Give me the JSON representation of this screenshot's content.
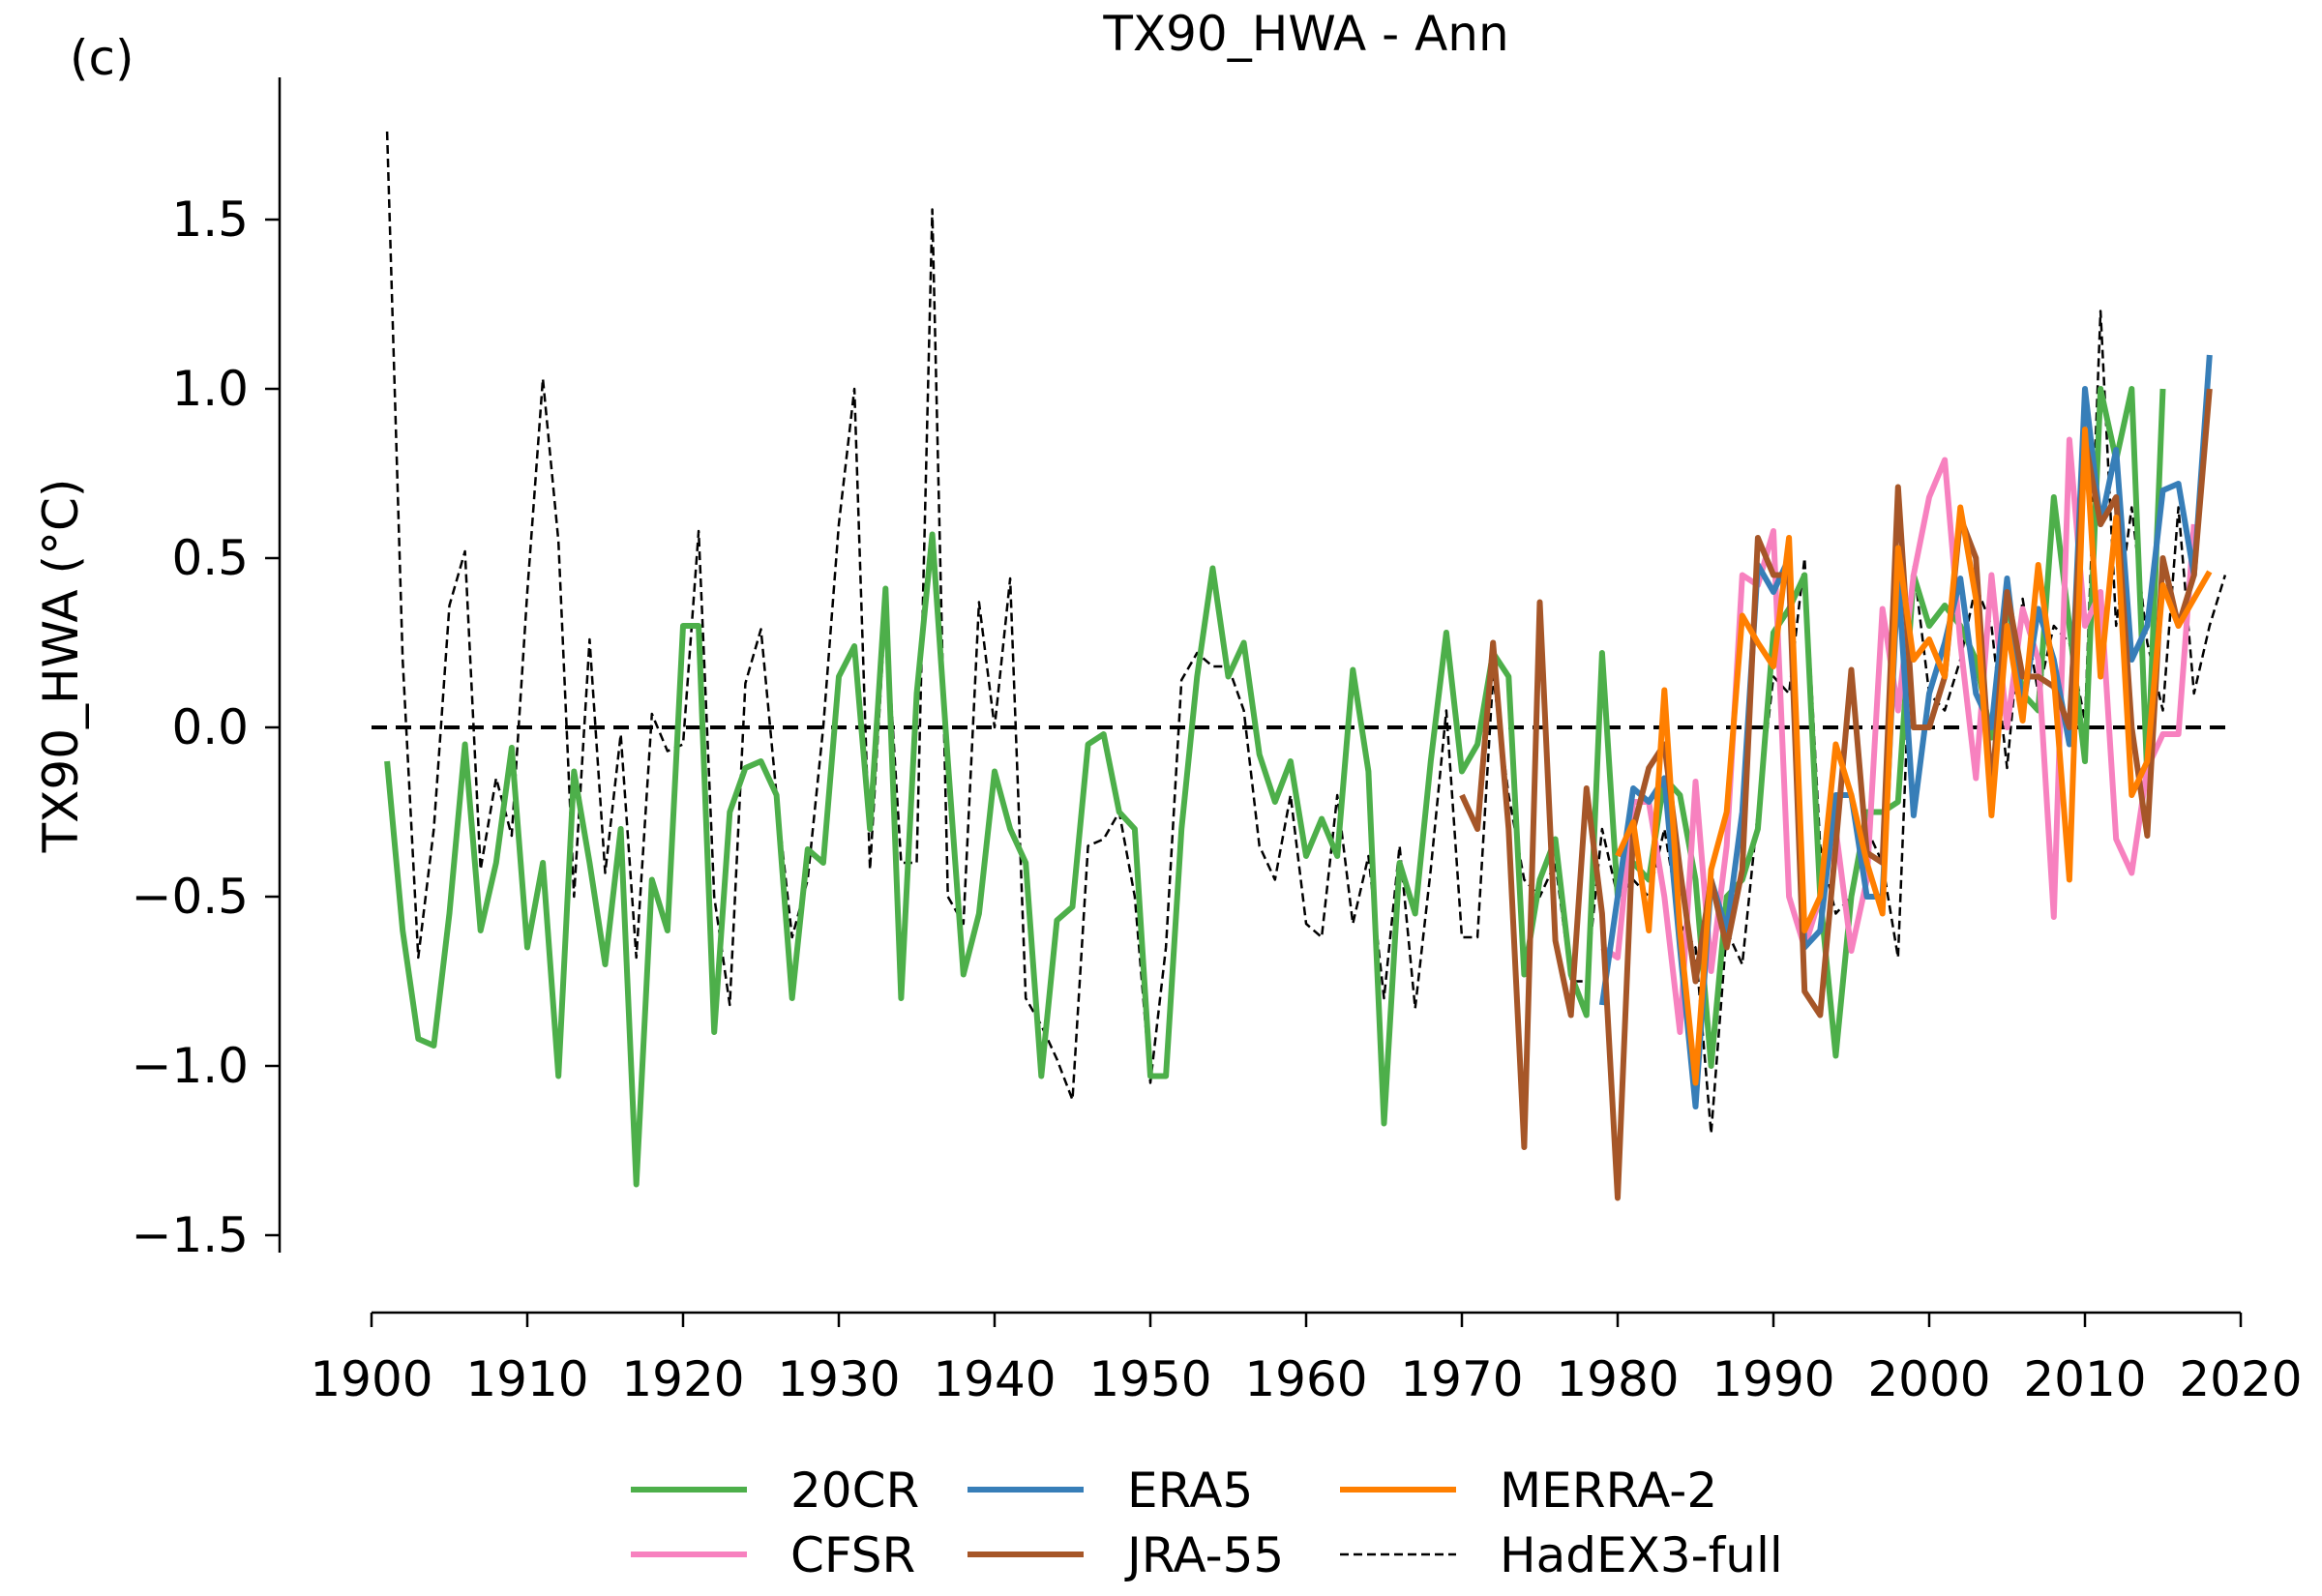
{
  "panel_label": "(c)",
  "chart_data": {
    "type": "line",
    "title": "TX90_HWA - Ann",
    "xlabel": "",
    "ylabel": "TX90_HWA (°C)",
    "xlim": [
      1900,
      2020
    ],
    "ylim": [
      -1.5,
      1.8
    ],
    "x_ticks": [
      1900,
      1910,
      1920,
      1930,
      1940,
      1950,
      1960,
      1970,
      1980,
      1990,
      2000,
      2010,
      2020
    ],
    "y_ticks": [
      1.5,
      1.0,
      0.5,
      0.0,
      -0.5,
      -1.0,
      -1.5
    ],
    "y_tick_labels": [
      "1.5",
      "1.0",
      "0.5",
      "0.0",
      "−0.5",
      "−1.0",
      "−1.5"
    ],
    "zero_line": true,
    "grid": false,
    "legend_position": "bottom",
    "series": [
      {
        "name": "20CR",
        "color": "#4daf4a",
        "style": "solid",
        "x_start": 1901,
        "values": [
          -0.1,
          -0.6,
          -0.92,
          -0.94,
          -0.55,
          -0.05,
          -0.6,
          -0.4,
          -0.06,
          -0.65,
          -0.4,
          -1.03,
          -0.13,
          -0.4,
          -0.7,
          -0.3,
          -1.35,
          -0.45,
          -0.6,
          0.3,
          0.3,
          -0.9,
          -0.25,
          -0.12,
          -0.1,
          -0.2,
          -0.8,
          -0.36,
          -0.4,
          0.15,
          0.24,
          -0.3,
          0.41,
          -0.8,
          0.1,
          0.57,
          -0.1,
          -0.73,
          -0.55,
          -0.13,
          -0.3,
          -0.4,
          -1.03,
          -0.57,
          -0.53,
          -0.05,
          -0.02,
          -0.25,
          -0.3,
          -1.03,
          -1.03,
          -0.3,
          0.15,
          0.47,
          0.15,
          0.25,
          -0.08,
          -0.22,
          -0.1,
          -0.38,
          -0.27,
          -0.38,
          0.17,
          -0.13,
          -1.17,
          -0.4,
          -0.55,
          -0.1,
          0.28,
          -0.13,
          -0.05,
          0.22,
          0.15,
          -0.73,
          -0.45,
          -0.33,
          -0.73,
          -0.85,
          0.22,
          -0.5,
          -0.4,
          -0.45,
          -0.15,
          -0.2,
          -0.45,
          -1.0,
          -0.5,
          -0.45,
          -0.3,
          0.28,
          0.35,
          0.45,
          -0.5,
          -0.97,
          -0.5,
          -0.25,
          -0.25,
          -0.22,
          0.45,
          0.3,
          0.36,
          0.3,
          0.2,
          -0.03,
          0.38,
          0.1,
          0.05,
          0.68,
          0.3,
          -0.1,
          1.0,
          0.79,
          1.0,
          -0.15,
          1.0
        ]
      },
      {
        "name": "CFSR",
        "color": "#f781bf",
        "style": "solid",
        "x_start": 1979,
        "values": [
          -0.65,
          -0.68,
          -0.22,
          -0.22,
          -0.5,
          -0.9,
          -0.16,
          -0.72,
          -0.35,
          0.45,
          0.42,
          0.58,
          -0.5,
          -0.65,
          -0.5,
          -0.3,
          -0.66,
          -0.45,
          0.35,
          0.05,
          0.45,
          0.68,
          0.79,
          0.25,
          -0.15,
          0.45,
          0.0,
          0.35,
          0.2,
          -0.56,
          0.85,
          0.3,
          0.4,
          -0.33,
          -0.43,
          -0.12,
          -0.02,
          -0.02,
          0.6
        ]
      },
      {
        "name": "ERA5",
        "color": "#377eb8",
        "style": "solid",
        "x_start": 1979,
        "values": [
          -0.82,
          -0.5,
          -0.18,
          -0.22,
          -0.15,
          -0.65,
          -1.12,
          -0.45,
          -0.6,
          -0.25,
          0.48,
          0.4,
          0.5,
          -0.65,
          -0.6,
          -0.2,
          -0.2,
          -0.5,
          -0.5,
          0.45,
          -0.26,
          0.1,
          0.25,
          0.44,
          0.1,
          0.0,
          0.44,
          0.05,
          0.35,
          0.2,
          -0.05,
          1.0,
          0.6,
          0.82,
          0.2,
          0.3,
          0.7,
          0.72,
          0.45,
          1.1
        ]
      },
      {
        "name": "JRA-55",
        "color": "#a65628",
        "style": "solid",
        "x_start": 1970,
        "values": [
          -0.2,
          -0.3,
          0.25,
          -0.3,
          -1.24,
          0.37,
          -0.63,
          -0.85,
          -0.18,
          -0.55,
          -1.39,
          -0.3,
          -0.12,
          -0.05,
          -0.42,
          -0.75,
          -0.45,
          -0.65,
          -0.42,
          0.56,
          0.45,
          0.45,
          -0.78,
          -0.85,
          -0.35,
          0.17,
          -0.37,
          -0.4,
          0.71,
          0.0,
          0.0,
          0.15,
          0.62,
          0.5,
          -0.2,
          0.4,
          0.15,
          0.15,
          0.12,
          0.0,
          0.85,
          0.6,
          0.68,
          0.0,
          -0.32,
          0.5,
          0.3,
          0.45,
          1.0
        ]
      },
      {
        "name": "MERRA-2",
        "color": "#ff7f00",
        "style": "solid",
        "x_start": 1980,
        "values": [
          -0.38,
          -0.28,
          -0.6,
          0.11,
          -0.6,
          -1.05,
          -0.42,
          -0.25,
          0.33,
          0.25,
          0.18,
          0.56,
          -0.6,
          -0.5,
          -0.05,
          -0.2,
          -0.4,
          -0.55,
          0.53,
          0.2,
          0.26,
          0.15,
          0.65,
          0.38,
          -0.26,
          0.3,
          0.02,
          0.48,
          0.15,
          -0.45,
          0.88,
          0.15,
          0.62,
          -0.2,
          -0.1,
          0.42,
          0.3,
          0.38,
          0.46
        ]
      },
      {
        "name": "HadEX3-full",
        "color": "#000000",
        "style": "dashed",
        "x_start": 1901,
        "values": [
          1.76,
          0.2,
          -0.68,
          -0.3,
          0.36,
          0.52,
          -0.42,
          -0.15,
          -0.32,
          0.4,
          1.03,
          0.55,
          -0.5,
          0.26,
          -0.43,
          -0.02,
          -0.68,
          0.04,
          -0.07,
          -0.05,
          0.58,
          -0.5,
          -0.82,
          0.13,
          0.29,
          -0.2,
          -0.62,
          -0.45,
          0.0,
          0.6,
          1.0,
          -0.42,
          0.35,
          -0.4,
          -0.4,
          1.53,
          -0.5,
          -0.58,
          0.37,
          0.0,
          0.44,
          -0.8,
          -0.88,
          -0.98,
          -1.1,
          -0.35,
          -0.33,
          -0.25,
          -0.5,
          -1.05,
          -0.65,
          0.14,
          0.22,
          0.18,
          0.18,
          0.05,
          -0.35,
          -0.45,
          -0.2,
          -0.58,
          -0.62,
          -0.2,
          -0.58,
          -0.38,
          -0.8,
          -0.35,
          -0.83,
          -0.42,
          0.05,
          -0.62,
          -0.62,
          0.15,
          -0.2,
          -0.45,
          -0.5,
          -0.4,
          -0.75,
          -0.75,
          -0.3,
          -0.5,
          -0.45,
          -0.5,
          -0.3,
          -0.58,
          -0.65,
          -1.2,
          -0.6,
          -0.7,
          -0.25,
          0.15,
          0.1,
          0.5,
          -0.35,
          -0.55,
          -0.5,
          -0.3,
          -0.4,
          -0.68,
          0.48,
          0.1,
          0.05,
          0.2,
          0.42,
          0.3,
          -0.12,
          0.38,
          0.1,
          0.3,
          0.25,
          0.02,
          1.23,
          0.3,
          0.65,
          0.25,
          0.05,
          0.65,
          0.1,
          0.3,
          0.45
        ]
      }
    ]
  }
}
